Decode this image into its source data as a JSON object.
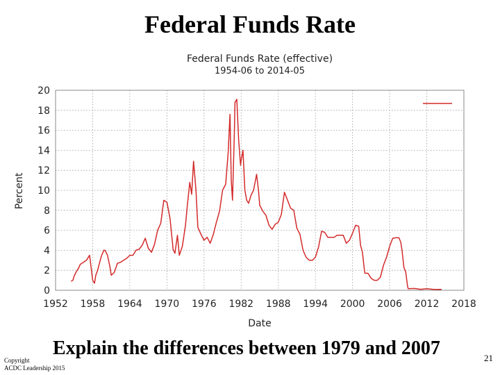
{
  "slide": {
    "title": "Federal Funds Rate",
    "caption": "Explain the differences between  1979 and 2007",
    "footer_line1": "Copyright",
    "footer_line2": "ACDC Leadership 2015",
    "page_number": "21"
  },
  "chart_data": {
    "type": "line",
    "title": "Federal Funds Rate (effective)",
    "subtitle": "1954-06 to 2014-05",
    "xlabel": "Date",
    "ylabel": "Percent",
    "xlim": [
      1952,
      2018
    ],
    "ylim": [
      0,
      20
    ],
    "xticks": [
      1952,
      1958,
      1964,
      1970,
      1976,
      1982,
      1988,
      1994,
      2000,
      2006,
      2012,
      2018
    ],
    "xtick_labels": [
      "1952",
      "1958",
      "1964",
      "1970",
      "1976",
      "1982",
      "1988",
      "1994",
      "2000",
      "2006",
      "2012",
      "2018"
    ],
    "yticks": [
      0,
      2,
      4,
      6,
      8,
      10,
      12,
      14,
      16,
      18,
      20
    ],
    "ytick_labels": [
      "0",
      "2",
      "4",
      "6",
      "8",
      "10",
      "12",
      "14",
      "16",
      "18",
      "20"
    ],
    "grid": true,
    "legend_position": "top-right",
    "color": "#d42a2a",
    "series": [
      {
        "x": [
          1954.5,
          1954.8,
          1955.0,
          1955.3,
          1955.7,
          1956.0,
          1956.5,
          1957.0,
          1957.5,
          1957.8,
          1958.0,
          1958.3,
          1958.5,
          1958.8,
          1959.0,
          1959.4,
          1959.8,
          1960.0,
          1960.4,
          1960.8,
          1961.0,
          1961.5,
          1962.0,
          1962.5,
          1963.0,
          1963.5,
          1964.0,
          1964.5,
          1965.0,
          1965.5,
          1966.0,
          1966.5,
          1967.0,
          1967.5,
          1968.0,
          1968.5,
          1969.0,
          1969.5,
          1970.0,
          1970.5,
          1971.0,
          1971.3,
          1971.7,
          1972.0,
          1972.5,
          1973.0,
          1973.3,
          1973.7,
          1974.0,
          1974.3,
          1974.7,
          1975.0,
          1975.5,
          1976.0,
          1976.5,
          1977.0,
          1977.5,
          1978.0,
          1978.5,
          1979.0,
          1979.5,
          1979.9,
          1980.2,
          1980.4,
          1980.6,
          1980.9,
          1981.0,
          1981.3,
          1981.6,
          1981.9,
          1982.0,
          1982.3,
          1982.6,
          1982.9,
          1983.2,
          1983.6,
          1984.0,
          1984.5,
          1984.8,
          1985.0,
          1985.5,
          1986.0,
          1986.5,
          1987.0,
          1987.5,
          1988.0,
          1988.5,
          1989.0,
          1989.5,
          1990.0,
          1990.5,
          1991.0,
          1991.5,
          1992.0,
          1992.5,
          1993.0,
          1993.5,
          1994.0,
          1994.5,
          1995.0,
          1995.5,
          1996.0,
          1996.5,
          1997.0,
          1997.5,
          1998.0,
          1998.5,
          1999.0,
          1999.5,
          2000.0,
          2000.5,
          2001.0,
          2001.3,
          2001.6,
          2001.9,
          2002.0,
          2002.5,
          2003.0,
          2003.5,
          2004.0,
          2004.5,
          2005.0,
          2005.5,
          2006.0,
          2006.5,
          2007.0,
          2007.5,
          2007.8,
          2008.0,
          2008.3,
          2008.6,
          2008.9,
          2009.0,
          2010.0,
          2011.0,
          2012.0,
          2013.0,
          2014.0,
          2014.4
        ],
        "y": [
          0.9,
          1.0,
          1.4,
          1.8,
          2.2,
          2.6,
          2.8,
          3.0,
          3.5,
          2.0,
          1.0,
          0.7,
          1.5,
          2.0,
          2.5,
          3.4,
          4.0,
          4.0,
          3.5,
          2.3,
          1.5,
          1.8,
          2.7,
          2.8,
          3.0,
          3.2,
          3.5,
          3.5,
          4.0,
          4.1,
          4.5,
          5.2,
          4.2,
          3.8,
          4.6,
          6.0,
          6.7,
          9.0,
          8.8,
          7.2,
          4.1,
          3.7,
          5.5,
          3.5,
          4.4,
          6.5,
          8.5,
          10.8,
          9.6,
          12.9,
          10.0,
          6.3,
          5.6,
          5.0,
          5.3,
          4.7,
          5.6,
          6.8,
          7.9,
          10.0,
          10.6,
          13.8,
          17.6,
          11.0,
          9.0,
          15.8,
          18.8,
          19.1,
          15.0,
          12.5,
          13.0,
          14.0,
          10.0,
          9.0,
          8.7,
          9.5,
          10.0,
          11.6,
          10.0,
          8.5,
          7.9,
          7.5,
          6.5,
          6.1,
          6.6,
          6.8,
          7.6,
          9.8,
          9.0,
          8.2,
          8.0,
          6.2,
          5.6,
          4.0,
          3.3,
          3.0,
          3.0,
          3.3,
          4.3,
          5.9,
          5.8,
          5.3,
          5.3,
          5.3,
          5.5,
          5.5,
          5.5,
          4.7,
          5.0,
          5.7,
          6.5,
          6.4,
          4.5,
          3.8,
          2.1,
          1.7,
          1.7,
          1.2,
          1.0,
          1.0,
          1.3,
          2.5,
          3.3,
          4.4,
          5.2,
          5.25,
          5.25,
          4.8,
          4.0,
          2.3,
          1.8,
          0.4,
          0.15,
          0.18,
          0.1,
          0.16,
          0.1,
          0.09,
          0.09
        ]
      }
    ]
  }
}
